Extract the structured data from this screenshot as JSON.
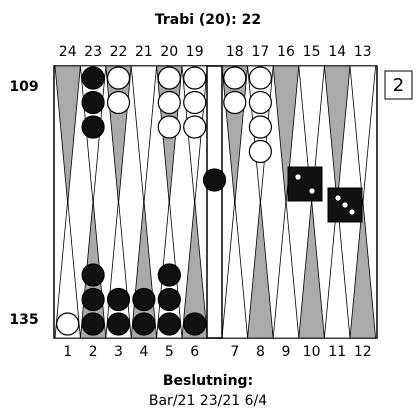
{
  "title": "Trabi (20): 22",
  "top_points": [
    24,
    23,
    22,
    21,
    20,
    19,
    18,
    17,
    16,
    15,
    14,
    13
  ],
  "bottom_points": [
    1,
    2,
    3,
    4,
    5,
    6,
    7,
    8,
    9,
    10,
    11,
    12
  ],
  "pip_counts": {
    "top": 109,
    "bottom": 135
  },
  "cube": 2,
  "decision": {
    "label": "Beslutning:",
    "move": "Bar/21 23/21 6/4"
  }
}
